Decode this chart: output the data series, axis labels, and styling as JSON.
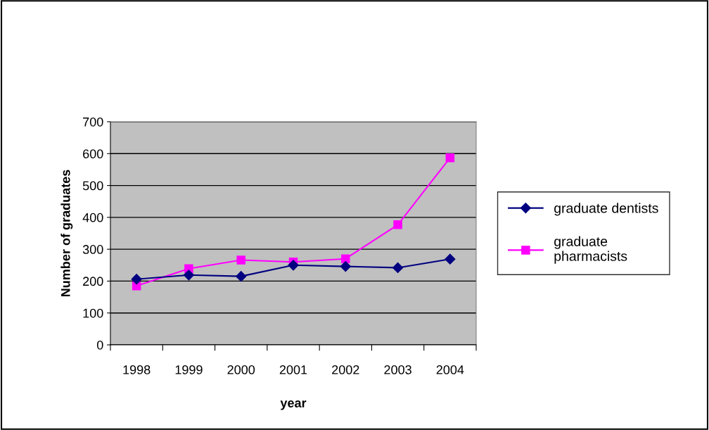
{
  "chart_data": {
    "type": "line",
    "xlabel": "year",
    "ylabel": "Number of graduates",
    "categories": [
      "1998",
      "1999",
      "2000",
      "2001",
      "2002",
      "2003",
      "2004"
    ],
    "series": [
      {
        "name": "graduate dentists",
        "color": "#000080",
        "marker": "diamond",
        "values": [
          206,
          219,
          215,
          250,
          246,
          242,
          269
        ]
      },
      {
        "name": "graduate\npharmacists",
        "color": "#ff00ff",
        "marker": "square",
        "values": [
          185,
          239,
          266,
          260,
          270,
          377,
          587
        ]
      }
    ],
    "ylim": [
      0,
      700
    ],
    "yticks": [
      0,
      100,
      200,
      300,
      400,
      500,
      600,
      700
    ],
    "grid": "y",
    "legend": "right",
    "line_style": "solid"
  }
}
